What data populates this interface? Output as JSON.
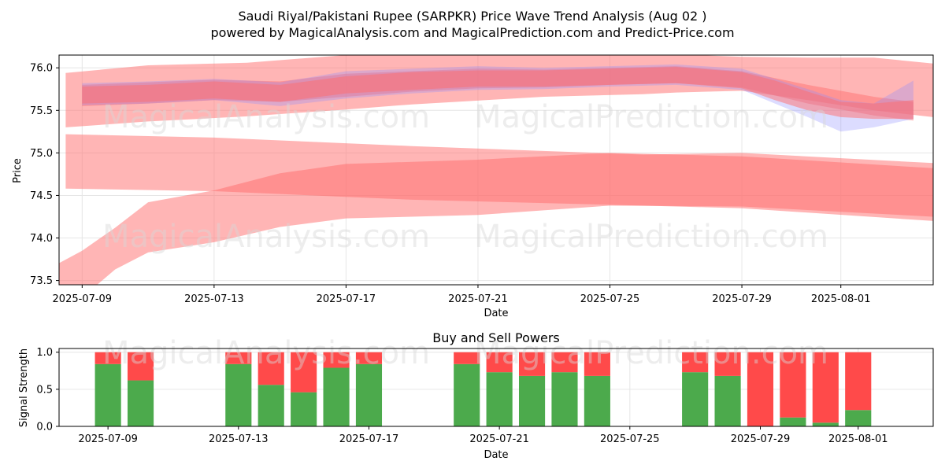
{
  "title_line1": "Saudi Riyal/Pakistani Rupee (SARPKR) Price Wave Trend Analysis (Aug 02 )",
  "title_line2": "powered by MagicalAnalysis.com and MagicalPrediction.com and Predict-Price.com",
  "watermarks": [
    "MagicalAnalysis.com",
    "MagicalPrediction.com"
  ],
  "colors": {
    "red_band": "#ff6b6b",
    "blue_band": "#8c8cff",
    "buy": "#4caa4c",
    "sell": "#ff4a4a",
    "grid": "#e6e6e6"
  },
  "chart_data": [
    {
      "type": "area",
      "title": "",
      "xlabel": "Date",
      "ylabel": "Price",
      "ylim": [
        73.45,
        76.15
      ],
      "xlim_days": [
        -0.7,
        25.8
      ],
      "x_origin": "2025-07-09",
      "yticks": [
        73.5,
        74.0,
        74.5,
        75.0,
        75.5,
        76.0
      ],
      "ytick_labels": [
        "73.5",
        "74.0",
        "74.5",
        "75.0",
        "75.5",
        "76.0"
      ],
      "xticks_days": [
        0,
        4,
        8,
        12,
        16,
        20,
        23
      ],
      "xtick_labels": [
        "2025-07-09",
        "2025-07-13",
        "2025-07-17",
        "2025-07-21",
        "2025-07-25",
        "2025-07-29",
        "2025-08-01"
      ],
      "grid": true,
      "bands": [
        {
          "name": "upper wave",
          "color": "red",
          "opacity": 0.5,
          "x": [
            -0.5,
            2,
            5,
            8,
            10,
            14,
            17,
            18,
            20,
            22,
            24,
            25.8
          ],
          "upper": [
            75.94,
            76.03,
            76.06,
            76.15,
            76.18,
            76.18,
            76.2,
            76.16,
            76.13,
            76.12,
            76.12,
            76.05
          ],
          "lower": [
            75.3,
            75.37,
            75.43,
            75.51,
            75.57,
            75.66,
            75.69,
            75.71,
            75.73,
            75.62,
            75.5,
            75.42
          ]
        },
        {
          "name": "long band",
          "color": "red",
          "opacity": 0.5,
          "x": [
            -0.5,
            4,
            10,
            17,
            20,
            25.8
          ],
          "upper": [
            75.22,
            75.18,
            75.08,
            74.98,
            75.0,
            74.88
          ],
          "lower": [
            74.58,
            74.55,
            74.45,
            74.38,
            74.35,
            74.2
          ]
        },
        {
          "name": "rising band",
          "color": "red",
          "opacity": 0.5,
          "x": [
            -1.2,
            0,
            1,
            2,
            4,
            6,
            8,
            12,
            16,
            20,
            25.8
          ],
          "upper": [
            73.6,
            73.85,
            74.12,
            74.42,
            74.56,
            74.76,
            74.87,
            74.92,
            75.0,
            74.96,
            74.82
          ],
          "lower": [
            73.0,
            73.3,
            73.63,
            73.83,
            73.95,
            74.13,
            74.23,
            74.27,
            74.38,
            74.37,
            74.25
          ]
        },
        {
          "name": "core red wave",
          "color": "red",
          "opacity": 0.45,
          "x": [
            0,
            2,
            4,
            6,
            8,
            10,
            12,
            14,
            16,
            18,
            20,
            22,
            24,
            25.2
          ],
          "upper": [
            75.8,
            75.83,
            75.86,
            75.84,
            75.93,
            75.96,
            75.99,
            75.98,
            76.0,
            76.02,
            75.96,
            75.8,
            75.66,
            75.6
          ],
          "lower": [
            75.55,
            75.58,
            75.62,
            75.6,
            75.66,
            75.72,
            75.76,
            75.77,
            75.8,
            75.82,
            75.77,
            75.58,
            75.44,
            75.38
          ]
        },
        {
          "name": "core blue wave",
          "color": "blue",
          "opacity": 0.3,
          "x": [
            0,
            2,
            4,
            6,
            8,
            10,
            12,
            14,
            16,
            18,
            20,
            22,
            23,
            24,
            25.2
          ],
          "upper": [
            75.82,
            75.84,
            75.87,
            75.83,
            75.96,
            75.99,
            76.02,
            76.0,
            76.02,
            76.04,
            75.99,
            75.75,
            75.62,
            75.58,
            75.85
          ],
          "lower": [
            75.56,
            75.58,
            75.62,
            75.55,
            75.64,
            75.7,
            75.74,
            75.75,
            75.78,
            75.8,
            75.74,
            75.42,
            75.25,
            75.3,
            75.4
          ]
        },
        {
          "name": "core red wave 2",
          "color": "red",
          "opacity": 0.5,
          "x": [
            0,
            2,
            4,
            6,
            8,
            10,
            12,
            14,
            16,
            18,
            20,
            21,
            22,
            23,
            24,
            25.2
          ],
          "upper": [
            75.78,
            75.8,
            75.84,
            75.8,
            75.9,
            75.95,
            75.97,
            75.97,
            75.99,
            76.01,
            75.95,
            75.85,
            75.72,
            75.6,
            75.58,
            75.62
          ],
          "lower": [
            75.58,
            75.6,
            75.64,
            75.6,
            75.7,
            75.74,
            75.78,
            75.78,
            75.8,
            75.82,
            75.76,
            75.62,
            75.5,
            75.42,
            75.4,
            75.4
          ]
        }
      ]
    },
    {
      "type": "bar",
      "title": "Buy and Sell Powers",
      "xlabel": "Date",
      "ylabel": "Signal Strength",
      "ylim": [
        0,
        1.05
      ],
      "xlim_days": [
        -1.5,
        25.3
      ],
      "yticks": [
        0.0,
        0.5,
        1.0
      ],
      "ytick_labels": [
        "0.0",
        "0.5",
        "1.0"
      ],
      "xticks_days": [
        0,
        4,
        8,
        12,
        16,
        20,
        23
      ],
      "xtick_labels": [
        "2025-07-09",
        "2025-07-13",
        "2025-07-17",
        "2025-07-21",
        "2025-07-25",
        "2025-07-29",
        "2025-08-01"
      ],
      "series": [
        {
          "name": "buy",
          "color": "green"
        },
        {
          "name": "sell",
          "color": "red"
        }
      ],
      "x_days": [
        0,
        1,
        4,
        5,
        6,
        7,
        8,
        11,
        12,
        13,
        14,
        15,
        18,
        19,
        20,
        21,
        22,
        23
      ],
      "buy_values": [
        0.84,
        0.62,
        0.84,
        0.56,
        0.46,
        0.79,
        0.84,
        0.84,
        0.73,
        0.68,
        0.73,
        0.68,
        0.73,
        0.68,
        0.0,
        0.12,
        0.05,
        0.22
      ]
    }
  ]
}
